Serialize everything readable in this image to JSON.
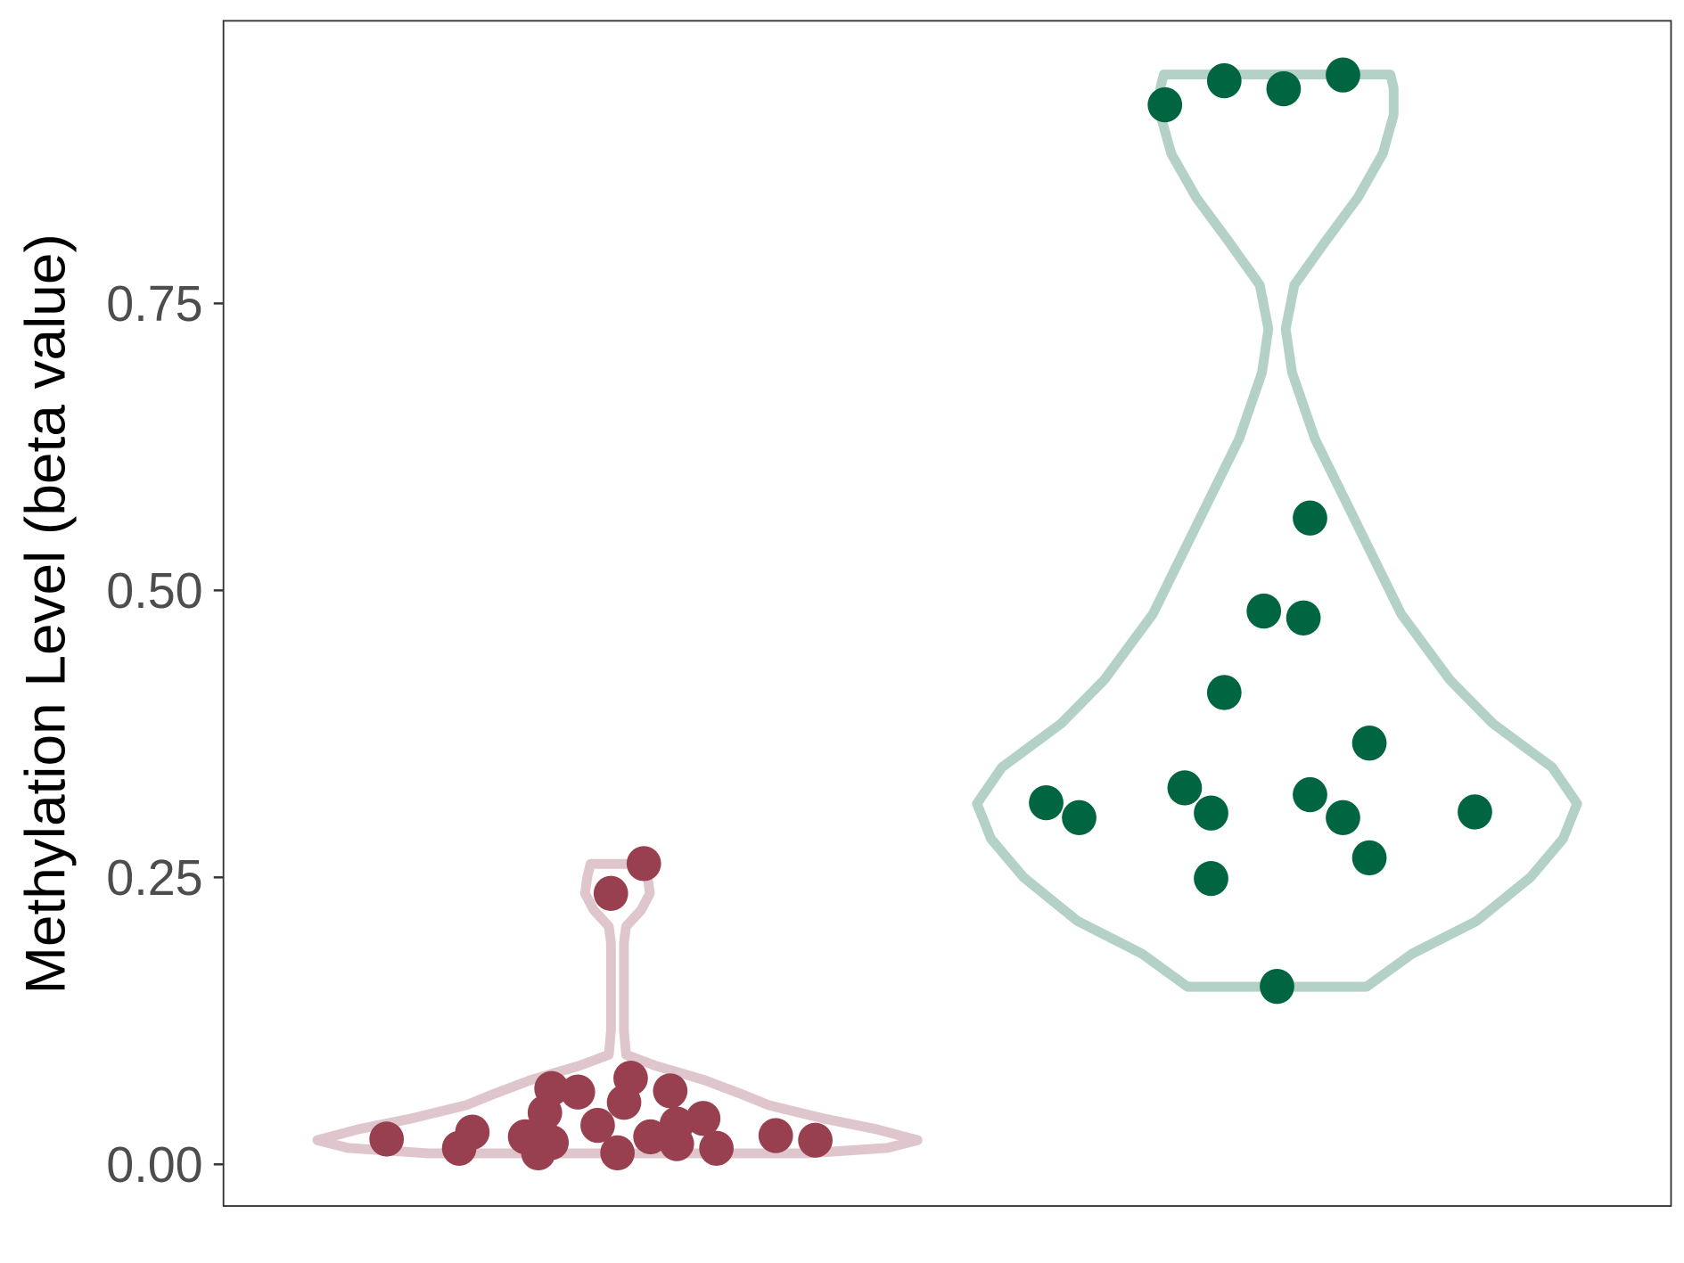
{
  "chart_data": {
    "type": "violin",
    "title": "",
    "xlabel": "",
    "ylabel": "Methylation Level (beta value)",
    "ylim": [
      -0.04,
      1.0
    ],
    "yticks": [
      0.0,
      0.25,
      0.5,
      0.75
    ],
    "ytick_labels": [
      "0.00",
      "0.25",
      "0.50",
      "0.75"
    ],
    "grid": false,
    "legend": "none",
    "groups": [
      {
        "position": 1,
        "point_color": "#98404f",
        "violin_color": "#dfc6cc",
        "points": [
          {
            "x": 0.65,
            "y": 0.022
          },
          {
            "x": 0.76,
            "y": 0.014
          },
          {
            "x": 0.78,
            "y": 0.028
          },
          {
            "x": 0.86,
            "y": 0.024
          },
          {
            "x": 0.89,
            "y": 0.045
          },
          {
            "x": 0.9,
            "y": 0.066
          },
          {
            "x": 0.88,
            "y": 0.01
          },
          {
            "x": 0.9,
            "y": 0.019
          },
          {
            "x": 0.94,
            "y": 0.063
          },
          {
            "x": 0.97,
            "y": 0.034
          },
          {
            "x": 0.99,
            "y": 0.236
          },
          {
            "x": 1.04,
            "y": 0.262
          },
          {
            "x": 1.01,
            "y": 0.054
          },
          {
            "x": 1.02,
            "y": 0.075
          },
          {
            "x": 1.0,
            "y": 0.01
          },
          {
            "x": 1.05,
            "y": 0.024
          },
          {
            "x": 1.08,
            "y": 0.064
          },
          {
            "x": 1.09,
            "y": 0.035
          },
          {
            "x": 1.09,
            "y": 0.018
          },
          {
            "x": 1.13,
            "y": 0.04
          },
          {
            "x": 1.15,
            "y": 0.014
          },
          {
            "x": 1.24,
            "y": 0.025
          },
          {
            "x": 1.3,
            "y": 0.021
          }
        ]
      },
      {
        "position": 2,
        "point_color": "#006641",
        "violin_color": "#b3d1c7",
        "points": [
          {
            "x": 1.83,
            "y": 0.923
          },
          {
            "x": 1.92,
            "y": 0.944
          },
          {
            "x": 2.01,
            "y": 0.937
          },
          {
            "x": 2.1,
            "y": 0.949
          },
          {
            "x": 2.05,
            "y": 0.563
          },
          {
            "x": 1.98,
            "y": 0.482
          },
          {
            "x": 2.04,
            "y": 0.476
          },
          {
            "x": 1.92,
            "y": 0.411
          },
          {
            "x": 2.14,
            "y": 0.367
          },
          {
            "x": 1.65,
            "y": 0.315
          },
          {
            "x": 1.7,
            "y": 0.302
          },
          {
            "x": 1.86,
            "y": 0.328
          },
          {
            "x": 1.9,
            "y": 0.306
          },
          {
            "x": 2.05,
            "y": 0.322
          },
          {
            "x": 2.1,
            "y": 0.302
          },
          {
            "x": 2.3,
            "y": 0.307
          },
          {
            "x": 2.14,
            "y": 0.267
          },
          {
            "x": 1.9,
            "y": 0.249
          },
          {
            "x": 2.0,
            "y": 0.155
          }
        ]
      }
    ]
  }
}
